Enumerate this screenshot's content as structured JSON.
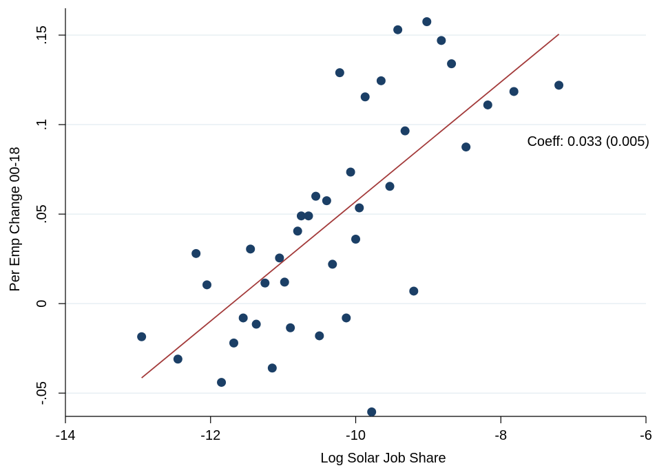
{
  "chart_data": {
    "type": "scatter",
    "xlabel": "Log Solar Job Share",
    "ylabel": "Per Emp Change 00-18",
    "xlim": [
      -14,
      -6
    ],
    "ylim": [
      -0.063,
      0.165
    ],
    "x_ticks": [
      -14,
      -12,
      -10,
      -8,
      -6
    ],
    "x_tick_labels": [
      "-14",
      "-12",
      "-10",
      "-8",
      "-6"
    ],
    "y_ticks": [
      -0.05,
      0,
      0.05,
      0.1,
      0.15
    ],
    "y_tick_labels": [
      "-.05",
      "0",
      ".05",
      ".1",
      ".15"
    ],
    "grid": true,
    "annotation": "Coeff: 0.033 (0.005)",
    "points": [
      {
        "x": -12.95,
        "y": -0.0185
      },
      {
        "x": -12.45,
        "y": -0.031
      },
      {
        "x": -12.2,
        "y": 0.028
      },
      {
        "x": -12.05,
        "y": 0.0105
      },
      {
        "x": -11.85,
        "y": -0.044
      },
      {
        "x": -11.68,
        "y": -0.022
      },
      {
        "x": -11.55,
        "y": -0.008
      },
      {
        "x": -11.45,
        "y": 0.0305
      },
      {
        "x": -11.37,
        "y": -0.0115
      },
      {
        "x": -11.25,
        "y": 0.0115
      },
      {
        "x": -11.15,
        "y": -0.036
      },
      {
        "x": -11.05,
        "y": 0.0255
      },
      {
        "x": -10.98,
        "y": 0.012
      },
      {
        "x": -10.9,
        "y": -0.0135
      },
      {
        "x": -10.8,
        "y": 0.0405
      },
      {
        "x": -10.75,
        "y": 0.049
      },
      {
        "x": -10.65,
        "y": 0.049
      },
      {
        "x": -10.55,
        "y": 0.06
      },
      {
        "x": -10.5,
        "y": -0.018
      },
      {
        "x": -10.4,
        "y": 0.0575
      },
      {
        "x": -10.32,
        "y": 0.022
      },
      {
        "x": -10.22,
        "y": 0.129
      },
      {
        "x": -10.13,
        "y": -0.008
      },
      {
        "x": -10.07,
        "y": 0.0735
      },
      {
        "x": -10.0,
        "y": 0.036
      },
      {
        "x": -9.95,
        "y": 0.0535
      },
      {
        "x": -9.87,
        "y": 0.1155
      },
      {
        "x": -9.78,
        "y": -0.0605
      },
      {
        "x": -9.65,
        "y": 0.1245
      },
      {
        "x": -9.53,
        "y": 0.0655
      },
      {
        "x": -9.42,
        "y": 0.153
      },
      {
        "x": -9.32,
        "y": 0.0965
      },
      {
        "x": -9.2,
        "y": 0.007
      },
      {
        "x": -9.02,
        "y": 0.1575
      },
      {
        "x": -8.82,
        "y": 0.147
      },
      {
        "x": -8.68,
        "y": 0.134
      },
      {
        "x": -8.48,
        "y": 0.0875
      },
      {
        "x": -8.18,
        "y": 0.111
      },
      {
        "x": -7.82,
        "y": 0.1185
      },
      {
        "x": -7.2,
        "y": 0.122
      }
    ],
    "fit_line": {
      "x": [
        -12.95,
        -7.2
      ],
      "y": [
        -0.0415,
        0.1505
      ]
    },
    "colors": {
      "points": "#1b3f66",
      "fit_line": "#a33a3a",
      "grid": "#e7eff3",
      "axis": "#000000"
    }
  }
}
